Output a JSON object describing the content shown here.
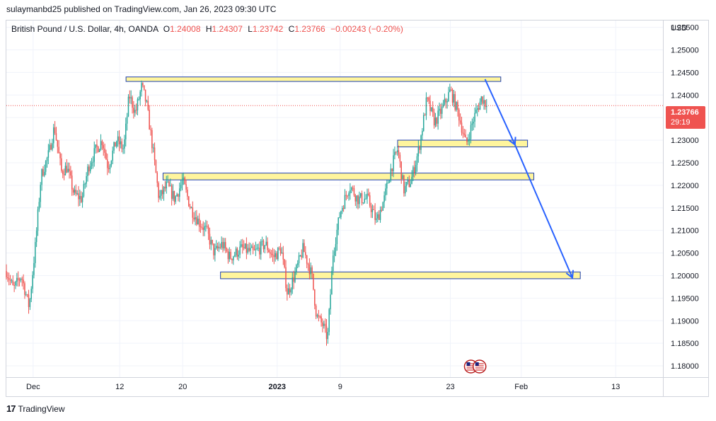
{
  "header": {
    "publisher_text": "sulaymanbd25 published on TradingView.com, Jan 26, 2023 09:30 UTC"
  },
  "legend": {
    "symbol": "British Pound / U.S. Dollar, 4h, OANDA",
    "o_label": "O",
    "o_value": "1.24008",
    "h_label": "H",
    "h_value": "1.24307",
    "l_label": "L",
    "l_value": "1.23742",
    "c_label": "C",
    "c_value": "1.23766",
    "change": "−0.00243 (−0.20%)"
  },
  "price_axis": {
    "currency": "USD"
  },
  "last_price": {
    "value": "1.23766",
    "countdown": "29:19",
    "color": "#ef5350"
  },
  "footer": {
    "brand": "TradingView",
    "logo_text": "17"
  },
  "colors": {
    "up": "#26a69a",
    "down": "#ef5350",
    "zone_fill": "#fff59d",
    "zone_border": "#1e40af",
    "arrow": "#2962ff"
  },
  "chart_data": {
    "type": "candlestick",
    "symbol": "GBPUSD",
    "timeframe": "4h",
    "y_ticks": [
      "1.18000",
      "1.18500",
      "1.19000",
      "1.19500",
      "1.20000",
      "1.20500",
      "1.21000",
      "1.21500",
      "1.22000",
      "1.22500",
      "1.23000",
      "1.23500",
      "1.24000",
      "1.24500",
      "1.25000",
      "1.25500"
    ],
    "x_ticks": [
      {
        "label": "Dec",
        "day": 0
      },
      {
        "label": "12",
        "day": 11
      },
      {
        "label": "20",
        "day": 19
      },
      {
        "label": "2023",
        "day": 31
      },
      {
        "label": "9",
        "day": 39
      },
      {
        "label": "23",
        "day": 53
      },
      {
        "label": "Feb",
        "day": 62
      },
      {
        "label": "13",
        "day": 74
      }
    ],
    "x_range_days": [
      -3.4,
      80
    ],
    "ylim": [
      1.1775,
      1.2565
    ],
    "key_points": [
      {
        "day": -3.4,
        "price": 1.201
      },
      {
        "day": -2.5,
        "price": 1.197
      },
      {
        "day": -1.5,
        "price": 1.2
      },
      {
        "day": -0.5,
        "price": 1.193
      },
      {
        "day": 0.3,
        "price": 1.207
      },
      {
        "day": 1,
        "price": 1.222
      },
      {
        "day": 2,
        "price": 1.227
      },
      {
        "day": 2.7,
        "price": 1.233
      },
      {
        "day": 3.6,
        "price": 1.223
      },
      {
        "day": 4.3,
        "price": 1.224
      },
      {
        "day": 5.2,
        "price": 1.218
      },
      {
        "day": 6.2,
        "price": 1.217
      },
      {
        "day": 7,
        "price": 1.224
      },
      {
        "day": 8,
        "price": 1.228
      },
      {
        "day": 8.8,
        "price": 1.23
      },
      {
        "day": 9.5,
        "price": 1.224
      },
      {
        "day": 10.6,
        "price": 1.23
      },
      {
        "day": 11.5,
        "price": 1.228
      },
      {
        "day": 12.2,
        "price": 1.24
      },
      {
        "day": 13,
        "price": 1.236
      },
      {
        "day": 13.8,
        "price": 1.242
      },
      {
        "day": 14.4,
        "price": 1.238
      },
      {
        "day": 15.2,
        "price": 1.228
      },
      {
        "day": 16,
        "price": 1.217
      },
      {
        "day": 17,
        "price": 1.22
      },
      {
        "day": 18,
        "price": 1.217
      },
      {
        "day": 19,
        "price": 1.221
      },
      {
        "day": 20,
        "price": 1.215
      },
      {
        "day": 21,
        "price": 1.212
      },
      {
        "day": 22,
        "price": 1.21
      },
      {
        "day": 23,
        "price": 1.205
      },
      {
        "day": 24,
        "price": 1.207
      },
      {
        "day": 25,
        "price": 1.204
      },
      {
        "day": 26.5,
        "price": 1.206
      },
      {
        "day": 28,
        "price": 1.205
      },
      {
        "day": 29.5,
        "price": 1.207
      },
      {
        "day": 30.5,
        "price": 1.204
      },
      {
        "day": 31.5,
        "price": 1.206
      },
      {
        "day": 32.3,
        "price": 1.196
      },
      {
        "day": 33.2,
        "price": 1.2
      },
      {
        "day": 34.3,
        "price": 1.206
      },
      {
        "day": 35.4,
        "price": 1.2
      },
      {
        "day": 36,
        "price": 1.191
      },
      {
        "day": 36.8,
        "price": 1.189
      },
      {
        "day": 37.4,
        "price": 1.186
      },
      {
        "day": 38.1,
        "price": 1.205
      },
      {
        "day": 39,
        "price": 1.214
      },
      {
        "day": 40.2,
        "price": 1.22
      },
      {
        "day": 41.2,
        "price": 1.217
      },
      {
        "day": 42.5,
        "price": 1.217
      },
      {
        "day": 43.6,
        "price": 1.212
      },
      {
        "day": 44.6,
        "price": 1.217
      },
      {
        "day": 45.5,
        "price": 1.224
      },
      {
        "day": 46.3,
        "price": 1.228
      },
      {
        "day": 47.1,
        "price": 1.219
      },
      {
        "day": 48,
        "price": 1.221
      },
      {
        "day": 49,
        "price": 1.228
      },
      {
        "day": 50,
        "price": 1.239
      },
      {
        "day": 51,
        "price": 1.234
      },
      {
        "day": 52,
        "price": 1.237
      },
      {
        "day": 53,
        "price": 1.241
      },
      {
        "day": 54,
        "price": 1.236
      },
      {
        "day": 55,
        "price": 1.229
      },
      {
        "day": 56,
        "price": 1.235
      },
      {
        "day": 57,
        "price": 1.2395
      },
      {
        "day": 57.6,
        "price": 1.23766
      }
    ],
    "zones": [
      {
        "x0": 11.8,
        "x1": 59.4,
        "y_high": 1.244,
        "y_low": 1.243
      },
      {
        "x0": 46.3,
        "x1": 62.8,
        "y_high": 1.23,
        "y_low": 1.2285
      },
      {
        "x0": 16.5,
        "x1": 63.6,
        "y_high": 1.2227,
        "y_low": 1.2212
      },
      {
        "x0": 23.8,
        "x1": 69.5,
        "y_high": 1.2008,
        "y_low": 1.1993
      }
    ],
    "arrows": [
      {
        "from": {
          "day": 57.4,
          "price": 1.2435
        },
        "to": {
          "day": 61.2,
          "price": 1.229
        }
      },
      {
        "from": {
          "day": 61.2,
          "price": 1.229
        },
        "to": {
          "day": 68.5,
          "price": 1.1995
        }
      }
    ],
    "current_price_line": 1.23766
  }
}
